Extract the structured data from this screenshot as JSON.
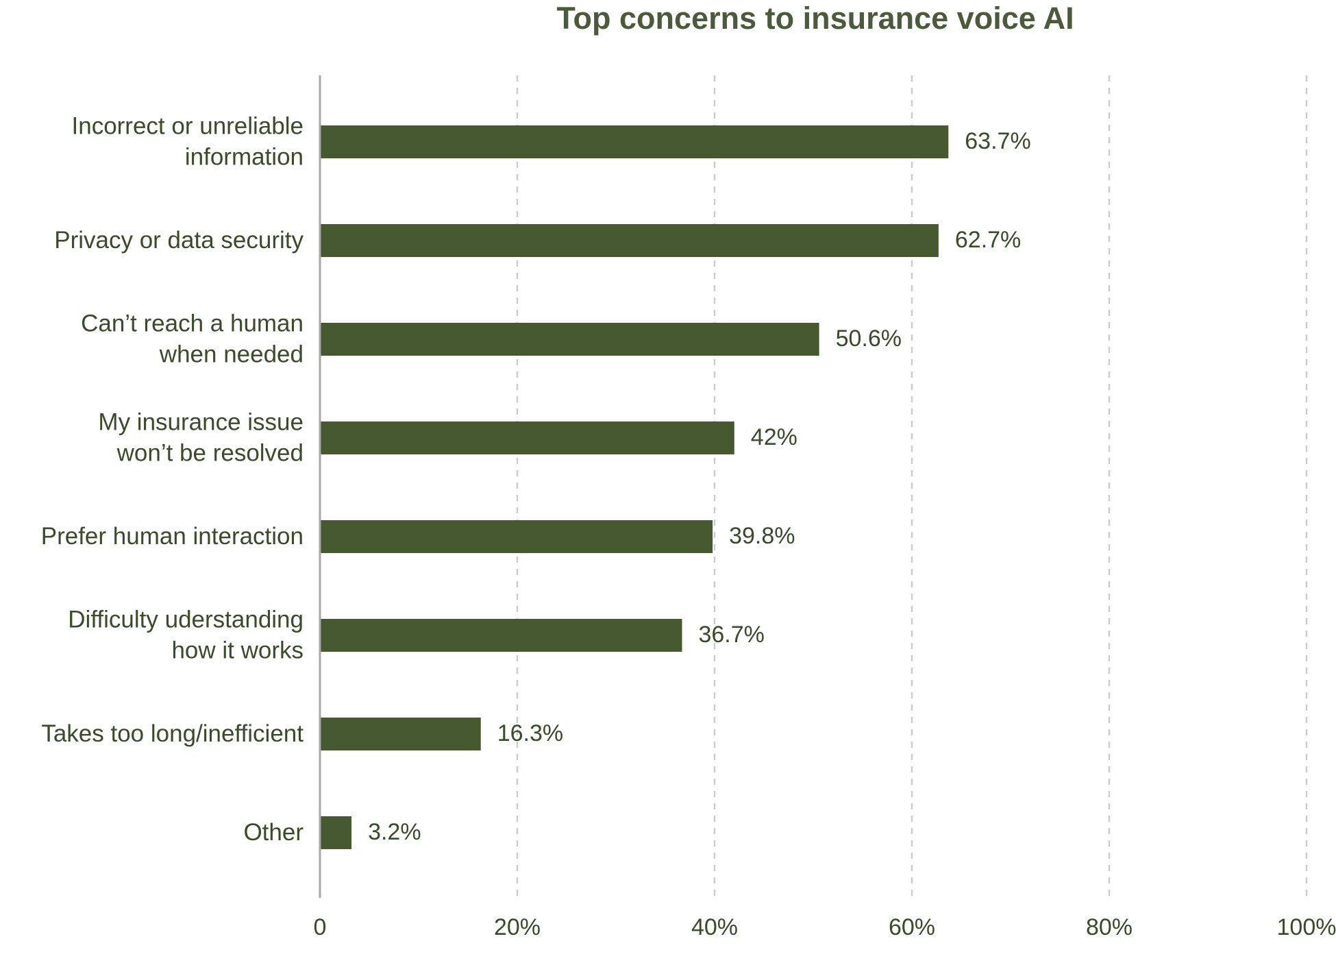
{
  "chart_data": {
    "type": "bar",
    "orientation": "horizontal",
    "title": "Top concerns to insurance voice AI",
    "categories": [
      [
        "Incorrect or unreliable",
        "information"
      ],
      [
        "Privacy or data security"
      ],
      [
        "Can’t reach a human",
        "when needed"
      ],
      [
        "My insurance issue",
        "won’t be resolved"
      ],
      [
        "Prefer human interaction"
      ],
      [
        "Difficulty uderstanding",
        "how it works"
      ],
      [
        "Takes too long/inefficient"
      ],
      [
        "Other"
      ]
    ],
    "values": [
      63.7,
      62.7,
      50.6,
      42,
      39.8,
      36.7,
      16.3,
      3.2
    ],
    "data_labels": [
      "63.7%",
      "62.7%",
      "50.6%",
      "42%",
      "39.8%",
      "36.7%",
      "16.3%",
      "3.2%"
    ],
    "x_ticks": [
      0,
      20,
      40,
      60,
      80,
      100
    ],
    "x_tick_labels": [
      "0",
      "20%",
      "40%",
      "60%",
      "80%",
      "100%"
    ],
    "xlim": [
      0,
      100
    ],
    "grid": "vertical-dashed",
    "colors": {
      "bar": "#46592e",
      "title": "#4a5a3a",
      "label": "#3a4a2a",
      "grid": "#cccccc",
      "axis": "#a8a8a8"
    }
  }
}
